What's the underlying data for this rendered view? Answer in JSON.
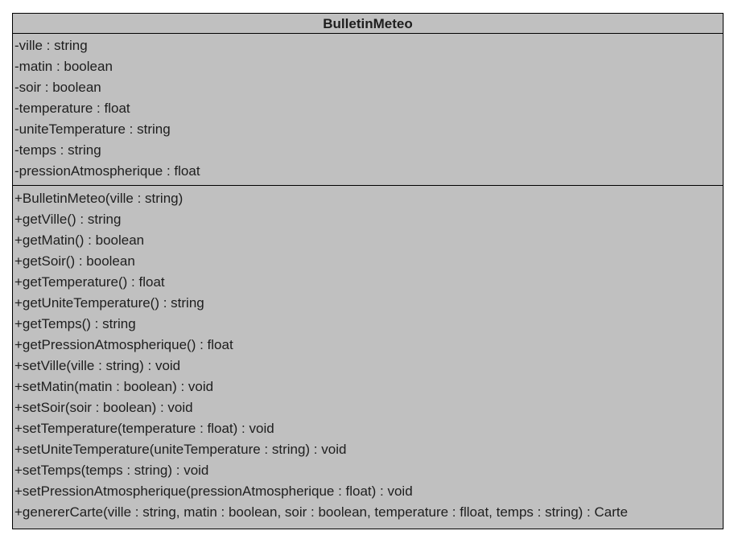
{
  "class_name": "BulletinMeteo",
  "attributes": [
    "-ville : string",
    "-matin : boolean",
    "-soir : boolean",
    "-temperature : float",
    "-uniteTemperature : string",
    "-temps : string",
    "-pressionAtmospherique : float"
  ],
  "operations": [
    "+BulletinMeteo(ville : string)",
    "+getVille() : string",
    "+getMatin() : boolean",
    "+getSoir() : boolean",
    "+getTemperature() : float",
    "+getUniteTemperature() : string",
    "+getTemps() : string",
    "+getPressionAtmospherique() : float",
    "+setVille(ville : string) : void",
    "+setMatin(matin : boolean) : void",
    "+setSoir(soir : boolean) : void",
    "+setTemperature(temperature : float) : void",
    "+setUniteTemperature(uniteTemperature : string) : void",
    "+setTemps(temps : string) : void",
    "+setPressionAtmospherique(pressionAtmospherique : float) : void",
    "+genererCarte(ville : string, matin : boolean, soir : boolean, temperature : flloat, temps : string) : Carte"
  ],
  "colors": {
    "box_fill": "#c0c0c0",
    "border": "#000000",
    "text": "#1e1e1e"
  }
}
